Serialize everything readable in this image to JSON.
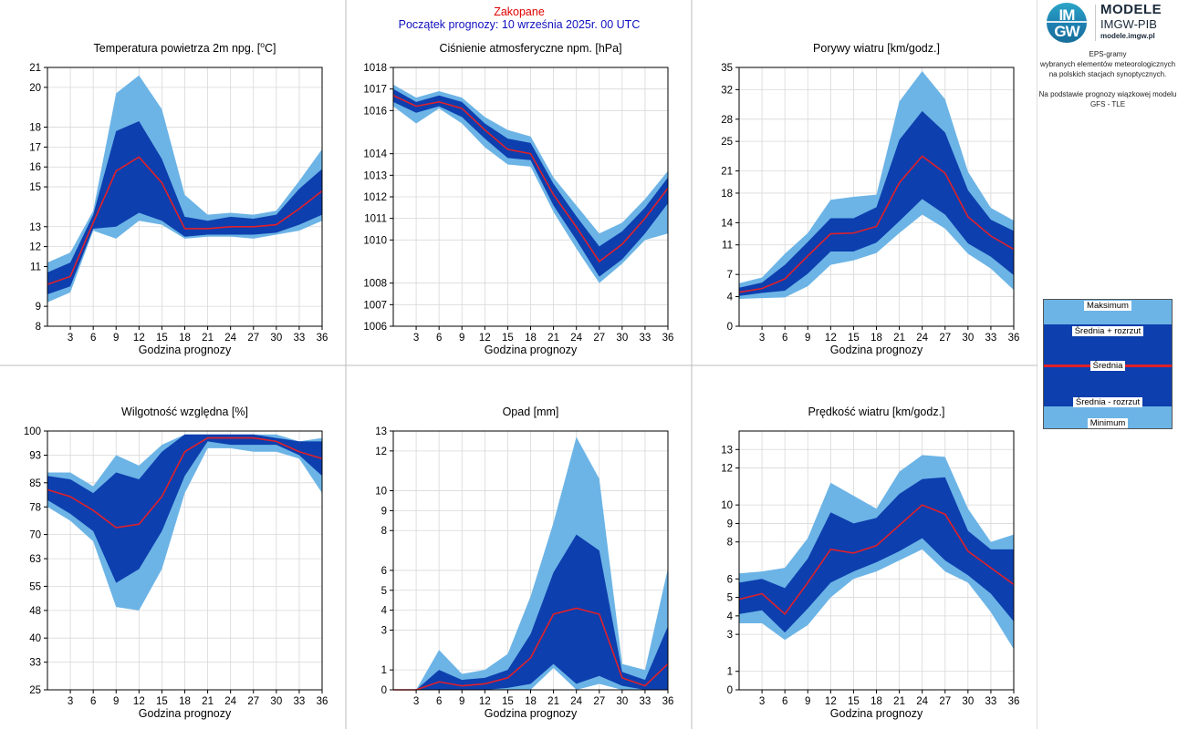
{
  "header": {
    "station": "Zakopane",
    "forecast_start": "Początek prognozy: 10 września 2025r. 00 UTC"
  },
  "sidebar": {
    "logo_imgw_top": "IM",
    "logo_imgw_bottom": "GW",
    "logo_line1": "MODELE",
    "logo_line2": "IMGW-PIB",
    "logo_line3": "modele.imgw.pl",
    "desc_line1": "EPS-gramy",
    "desc_line2": "wybranych elementów meteorologicznych",
    "desc_line3": "na polskich stacjach  synoptycznych.",
    "desc_line4": "Na podstawie prognozy wiązkowej modelu",
    "desc_line5": "GFS - TLE"
  },
  "legend": {
    "max": "Maksimum",
    "mean_plus": "Średnia + rozrzut",
    "mean": "Średnia",
    "mean_minus": "Średnia - rozrzut",
    "min": "Minimum"
  },
  "colors": {
    "outer_band": "#6cb4e6",
    "inner_band": "#0d3fae",
    "mean_line": "#e0202a",
    "grid": "#d8d8d8",
    "divider": "#bdbdbd",
    "station": "#e00000",
    "forecast_start": "#1010c0"
  },
  "chart_data": [
    {
      "id": "temp",
      "type": "area",
      "title": "Temperatura powietrza 2m npg. [°C]",
      "xlabel": "Godzina prognozy",
      "ylabel": "",
      "x_ticks": [
        3,
        6,
        9,
        12,
        15,
        18,
        21,
        24,
        27,
        30,
        33,
        36
      ],
      "y_ticks": [
        8,
        9,
        11,
        12,
        13,
        15,
        16,
        17,
        18,
        20,
        21
      ],
      "ylim": [
        8,
        21
      ],
      "grid": true,
      "x": [
        0,
        3,
        6,
        9,
        12,
        15,
        18,
        21,
        24,
        27,
        30,
        33,
        36
      ],
      "series": [
        {
          "name": "Maksimum",
          "values": [
            11.2,
            11.7,
            13.8,
            19.7,
            20.6,
            18.9,
            14.6,
            13.6,
            13.7,
            13.6,
            13.8,
            15.3,
            16.9
          ]
        },
        {
          "name": "Średnia + rozrzut",
          "values": [
            10.7,
            11.2,
            13.6,
            17.8,
            18.3,
            16.4,
            13.5,
            13.3,
            13.5,
            13.4,
            13.6,
            14.9,
            15.9
          ]
        },
        {
          "name": "Średnia",
          "values": [
            10.1,
            10.5,
            13.2,
            15.8,
            16.5,
            15.2,
            12.9,
            12.9,
            13.0,
            13.0,
            13.1,
            13.9,
            14.8
          ]
        },
        {
          "name": "Średnia - rozrzut",
          "values": [
            9.6,
            10.0,
            12.9,
            13.0,
            13.7,
            13.3,
            12.5,
            12.6,
            12.6,
            12.6,
            12.7,
            13.1,
            13.6
          ]
        },
        {
          "name": "Minimum",
          "values": [
            9.2,
            9.7,
            12.8,
            12.4,
            13.3,
            13.1,
            12.4,
            12.5,
            12.5,
            12.4,
            12.6,
            12.8,
            13.3
          ]
        }
      ]
    },
    {
      "id": "pressure",
      "type": "area",
      "title": "Ciśnienie atmosferyczne npm. [hPa]",
      "xlabel": "Godzina prognozy",
      "ylabel": "",
      "x_ticks": [
        3,
        6,
        9,
        12,
        15,
        18,
        21,
        24,
        27,
        30,
        33,
        36
      ],
      "y_ticks": [
        1006,
        1007,
        1008,
        1010,
        1011,
        1012,
        1013,
        1014,
        1016,
        1017,
        1018
      ],
      "ylim": [
        1006,
        1018
      ],
      "grid": true,
      "x": [
        0,
        3,
        6,
        9,
        12,
        15,
        18,
        21,
        24,
        27,
        30,
        33,
        36
      ],
      "series": [
        {
          "name": "Maksimum",
          "values": [
            1017.2,
            1016.6,
            1016.9,
            1016.6,
            1015.7,
            1015.1,
            1014.8,
            1012.9,
            1011.6,
            1010.3,
            1010.8,
            1011.9,
            1013.2
          ]
        },
        {
          "name": "Średnia + rozrzut",
          "values": [
            1017.0,
            1016.4,
            1016.7,
            1016.4,
            1015.4,
            1014.7,
            1014.5,
            1012.6,
            1011.1,
            1009.7,
            1010.4,
            1011.5,
            1012.9
          ]
        },
        {
          "name": "Średnia",
          "values": [
            1016.7,
            1016.2,
            1016.4,
            1016.1,
            1015.1,
            1014.2,
            1014.0,
            1012.1,
            1010.6,
            1009.0,
            1009.8,
            1011.0,
            1012.4
          ]
        },
        {
          "name": "Średnia - rozrzut",
          "values": [
            1016.4,
            1015.9,
            1016.2,
            1015.7,
            1014.7,
            1013.8,
            1013.7,
            1011.6,
            1010.0,
            1008.3,
            1009.1,
            1010.3,
            1011.7
          ]
        },
        {
          "name": "Minimum",
          "values": [
            1016.2,
            1015.4,
            1016.1,
            1015.4,
            1014.3,
            1013.5,
            1013.4,
            1011.3,
            1009.6,
            1008.0,
            1008.9,
            1010.0,
            1010.3
          ]
        }
      ]
    },
    {
      "id": "gusts",
      "type": "area",
      "title": "Porywy wiatru [km/godz.]",
      "xlabel": "Godzina prognozy",
      "ylabel": "",
      "x_ticks": [
        3,
        6,
        9,
        12,
        15,
        18,
        21,
        24,
        27,
        30,
        33,
        36
      ],
      "y_ticks": [
        0,
        4,
        7,
        11,
        14,
        18,
        21,
        25,
        28,
        32,
        35
      ],
      "ylim": [
        0,
        35
      ],
      "grid": true,
      "x": [
        0,
        3,
        6,
        9,
        12,
        15,
        18,
        21,
        24,
        27,
        30,
        33,
        36
      ],
      "series": [
        {
          "name": "Maksimum",
          "values": [
            5.8,
            6.6,
            9.8,
            12.6,
            17.1,
            17.5,
            17.8,
            30.4,
            34.5,
            30.7,
            20.9,
            16.0,
            14.3
          ]
        },
        {
          "name": "Średnia + rozrzut",
          "values": [
            5.2,
            5.9,
            8.3,
            11.4,
            14.6,
            14.6,
            16.1,
            25.2,
            29.1,
            26.2,
            18.4,
            14.4,
            12.9
          ]
        },
        {
          "name": "Średnia",
          "values": [
            4.6,
            5.1,
            6.4,
            9.5,
            12.5,
            12.6,
            13.5,
            19.4,
            23.0,
            20.7,
            14.8,
            12.2,
            10.4
          ]
        },
        {
          "name": "Średnia - rozrzut",
          "values": [
            4.1,
            4.5,
            4.8,
            7.1,
            10.1,
            10.1,
            11.3,
            14.2,
            17.2,
            15.1,
            11.2,
            9.4,
            6.9
          ]
        },
        {
          "name": "Minimum",
          "values": [
            3.7,
            3.8,
            3.9,
            5.4,
            8.3,
            8.9,
            9.9,
            12.6,
            15.1,
            13.2,
            9.8,
            7.8,
            4.9
          ]
        }
      ]
    },
    {
      "id": "humidity",
      "type": "area",
      "title": "Wilgotność względna [%]",
      "xlabel": "Godzina prognozy",
      "ylabel": "",
      "x_ticks": [
        3,
        6,
        9,
        12,
        15,
        18,
        21,
        24,
        27,
        30,
        33,
        36
      ],
      "y_ticks": [
        25,
        33,
        40,
        48,
        55,
        63,
        70,
        78,
        85,
        93,
        100
      ],
      "ylim": [
        25,
        100
      ],
      "grid": true,
      "x": [
        0,
        3,
        6,
        9,
        12,
        15,
        18,
        21,
        24,
        27,
        30,
        33,
        36
      ],
      "series": [
        {
          "name": "Maksimum",
          "values": [
            88,
            88,
            84,
            93,
            90,
            96,
            99,
            99,
            99,
            99,
            99,
            97,
            98
          ]
        },
        {
          "name": "Średnia + rozrzut",
          "values": [
            87,
            86,
            82,
            88,
            86,
            94,
            99,
            99,
            99,
            99,
            98,
            97,
            97
          ]
        },
        {
          "name": "Średnia",
          "values": [
            83,
            81,
            77,
            72,
            73,
            81,
            94,
            98,
            98,
            98,
            97,
            94,
            92
          ]
        },
        {
          "name": "Średnia - rozrzut",
          "values": [
            80,
            76,
            71,
            56,
            60,
            71,
            87,
            97,
            96,
            96,
            96,
            93,
            87
          ]
        },
        {
          "name": "Minimum",
          "values": [
            78,
            74,
            68,
            49,
            48,
            60,
            82,
            95,
            95,
            94,
            94,
            92,
            82
          ]
        }
      ]
    },
    {
      "id": "precip",
      "type": "area",
      "title": "Opad [mm]",
      "xlabel": "Godzina prognozy",
      "ylabel": "",
      "x_ticks": [
        3,
        6,
        9,
        12,
        15,
        18,
        21,
        24,
        27,
        30,
        33,
        36
      ],
      "y_ticks": [
        0,
        1,
        3,
        4,
        5,
        6,
        8,
        9,
        10,
        12,
        13
      ],
      "ylim": [
        0,
        13
      ],
      "grid": true,
      "x": [
        0,
        3,
        6,
        9,
        12,
        15,
        18,
        21,
        24,
        27,
        30,
        33,
        36
      ],
      "series": [
        {
          "name": "Maksimum",
          "values": [
            0,
            0,
            2.0,
            0.8,
            1.0,
            1.8,
            4.7,
            8.4,
            12.7,
            10.6,
            1.3,
            1.0,
            6.1
          ]
        },
        {
          "name": "Średnia + rozrzut",
          "values": [
            0,
            0,
            1.0,
            0.5,
            0.6,
            1.0,
            2.8,
            5.9,
            7.8,
            7.0,
            0.9,
            0.5,
            3.2
          ]
        },
        {
          "name": "Średnia",
          "values": [
            0,
            0,
            0.4,
            0.2,
            0.3,
            0.6,
            1.6,
            3.8,
            4.1,
            3.8,
            0.6,
            0.2,
            1.3
          ]
        },
        {
          "name": "Średnia - rozrzut",
          "values": [
            0,
            0,
            0,
            0,
            0,
            0.1,
            0.3,
            1.3,
            0.3,
            0.7,
            0.2,
            0,
            0
          ]
        },
        {
          "name": "Minimum",
          "values": [
            0,
            0,
            0,
            0,
            0,
            0,
            0,
            1.1,
            0,
            0.3,
            0,
            0,
            0
          ]
        }
      ]
    },
    {
      "id": "wind",
      "type": "area",
      "title": "Prędkość wiatru [km/godz.]",
      "xlabel": "Godzina prognozy",
      "ylabel": "",
      "x_ticks": [
        3,
        6,
        9,
        12,
        15,
        18,
        21,
        24,
        27,
        30,
        33,
        36
      ],
      "y_ticks": [
        0,
        1,
        3,
        4,
        5,
        6,
        8,
        9,
        10,
        12,
        13
      ],
      "ylim": [
        0,
        14
      ],
      "grid": true,
      "x": [
        0,
        3,
        6,
        9,
        12,
        15,
        18,
        21,
        24,
        27,
        30,
        33,
        36
      ],
      "series": [
        {
          "name": "Maksimum",
          "values": [
            6.3,
            6.4,
            6.6,
            8.2,
            11.2,
            10.5,
            9.8,
            11.8,
            12.7,
            12.6,
            9.8,
            8.0,
            8.4
          ]
        },
        {
          "name": "Średnia + rozrzut",
          "values": [
            5.8,
            6.0,
            5.5,
            7.1,
            9.6,
            9.0,
            9.3,
            10.6,
            11.4,
            11.5,
            8.6,
            7.6,
            7.6
          ]
        },
        {
          "name": "Średnia",
          "values": [
            4.9,
            5.2,
            4.1,
            5.8,
            7.6,
            7.4,
            7.8,
            8.9,
            10.0,
            9.5,
            7.5,
            6.6,
            5.7
          ]
        },
        {
          "name": "Średnia - rozrzut",
          "values": [
            4.1,
            4.3,
            3.1,
            4.4,
            5.8,
            6.4,
            6.9,
            7.5,
            8.2,
            7.0,
            6.2,
            5.2,
            3.7
          ]
        },
        {
          "name": "Minimum",
          "values": [
            3.6,
            3.6,
            2.7,
            3.5,
            5.0,
            6.0,
            6.4,
            7.0,
            7.6,
            6.4,
            5.8,
            4.2,
            2.2
          ]
        }
      ]
    }
  ]
}
